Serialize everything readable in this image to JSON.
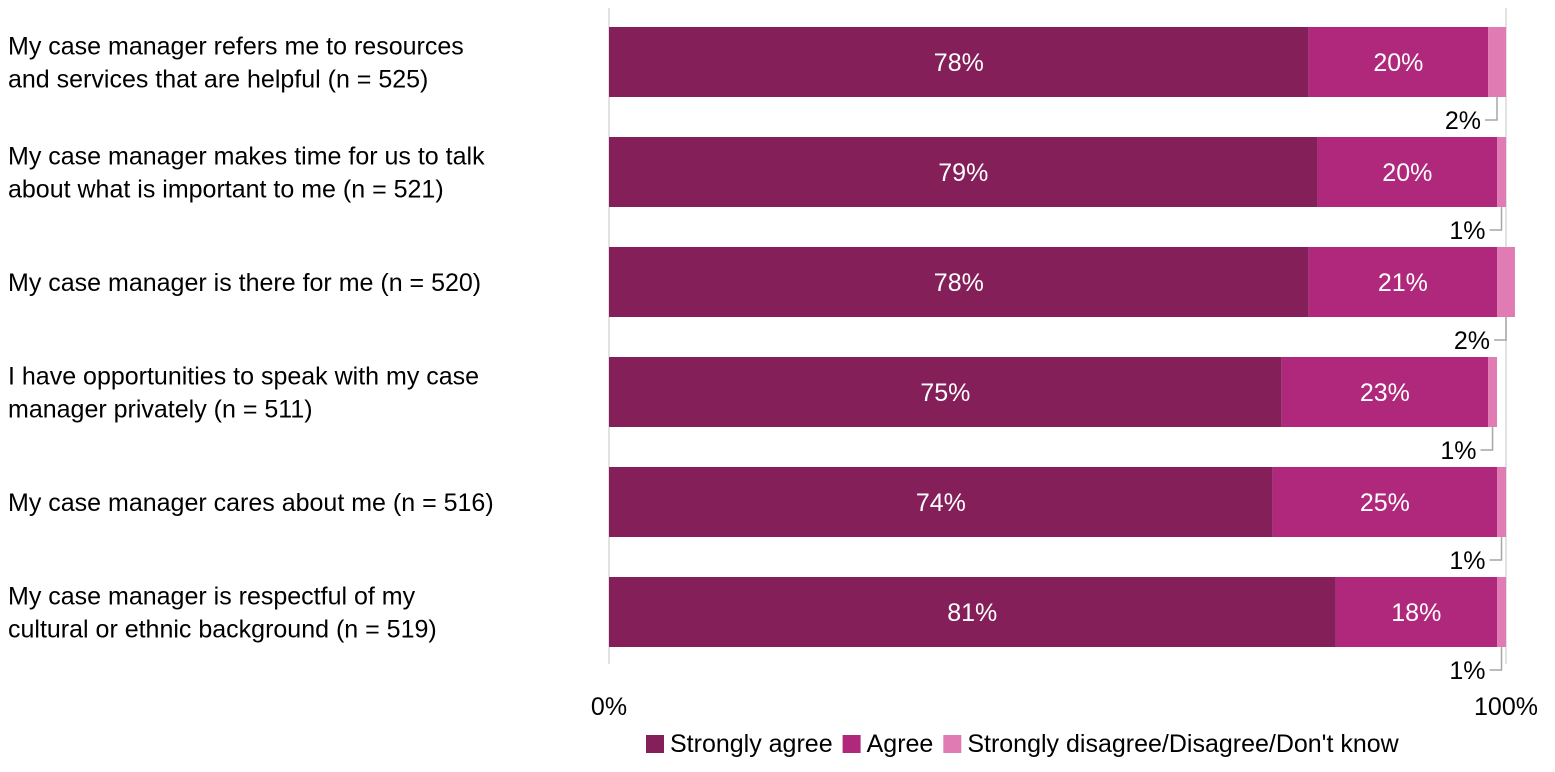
{
  "chart_data": {
    "type": "bar",
    "orientation": "horizontal",
    "stacked": true,
    "categories": [
      [
        "My case manager refers me to resources",
        "and services that are helpful (n = 525)"
      ],
      [
        "My case manager makes time for us to talk",
        "about what is important to me (n = 521)"
      ],
      [
        "My case manager is there for me (n = 520)"
      ],
      [
        "I have opportunities to speak with my case",
        "manager privately (n = 511)"
      ],
      [
        "My case manager cares about me (n = 516)"
      ],
      [
        "My case manager is respectful of my",
        "cultural or ethnic background (n = 519)"
      ]
    ],
    "series": [
      {
        "name": "Strongly agree",
        "color": "#841f5a",
        "values": [
          78,
          79,
          78,
          75,
          74,
          81
        ],
        "labels": [
          "78%",
          "79%",
          "78%",
          "75%",
          "74%",
          "81%"
        ]
      },
      {
        "name": "Agree",
        "color": "#b0287c",
        "values": [
          20,
          20,
          21,
          23,
          25,
          18
        ],
        "labels": [
          "20%",
          "20%",
          "21%",
          "23%",
          "25%",
          "18%"
        ]
      },
      {
        "name": "Strongly disagree/Disagree/Don't know",
        "color": "#e07bb3",
        "values": [
          2,
          1,
          2,
          1,
          1,
          1
        ],
        "labels": [
          "2%",
          "1%",
          "2%",
          "1%",
          "1%",
          "1%"
        ]
      }
    ],
    "xlim": [
      0,
      100
    ],
    "xticks": [
      "0%",
      "100%"
    ],
    "legend_position": "bottom-right",
    "grid": false
  }
}
